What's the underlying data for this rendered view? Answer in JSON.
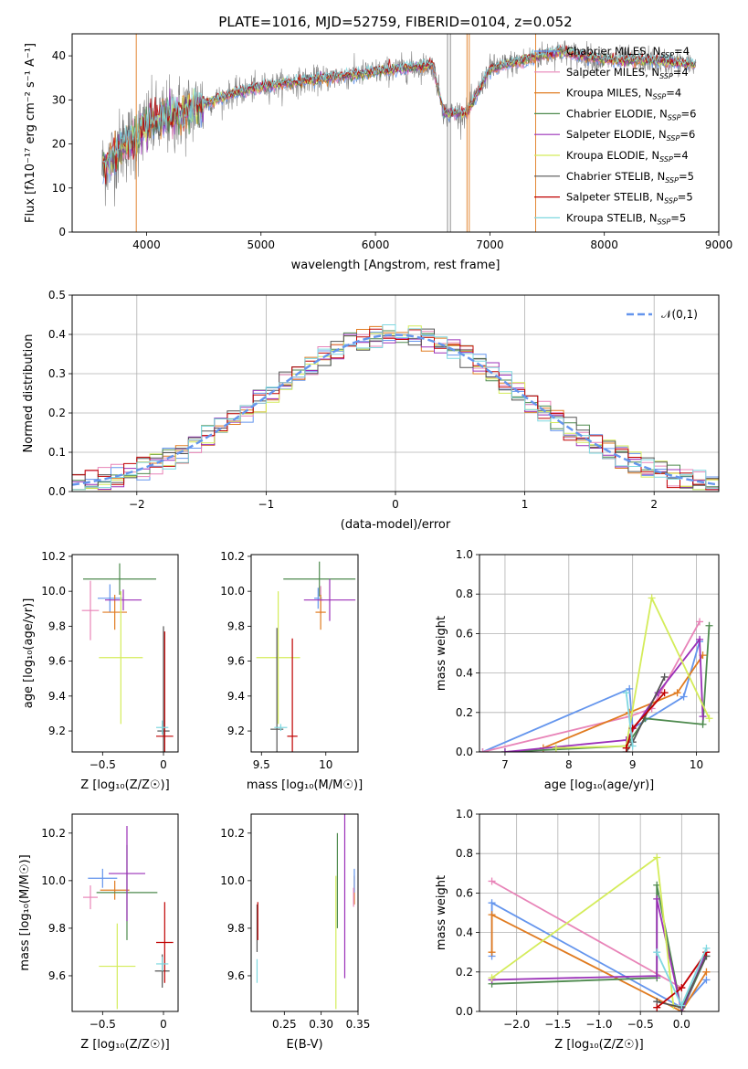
{
  "figure_title": "PLATE=1016, MJD=52759, FIBERID=0104, z=0.052",
  "series_colors": {
    "Chabrier MILES": "#6495ed",
    "Salpeter MILES": "#e884b8",
    "Kroupa MILES": "#e07b20",
    "Chabrier ELODIE": "#4e8a4e",
    "Salpeter ELODIE": "#9b30b8",
    "Kroupa ELODIE": "#d4ec5a",
    "Chabrier STELIB": "#555555",
    "Salpeter STELIB": "#c00000",
    "Kroupa STELIB": "#7fd8e0"
  },
  "chart_data": [
    {
      "id": "spectrum",
      "type": "line",
      "title": "PLATE=1016, MJD=52759, FIBERID=0104, z=0.052",
      "xlabel": "wavelength [Angstrom, rest frame]",
      "ylabel": "Flux [fλ10⁻¹⁷ erg cm⁻² s⁻¹ A⁻¹]",
      "xlim": [
        3350,
        9000
      ],
      "ylim": [
        0,
        45
      ],
      "xticks": [
        4000,
        5000,
        6000,
        7000,
        8000,
        9000
      ],
      "yticks": [
        0,
        10,
        20,
        30,
        40
      ],
      "legend_placement": "upper-right",
      "grid": false,
      "continuum": {
        "x": [
          3600,
          3700,
          3800,
          3900,
          4000,
          4100,
          4200,
          4300,
          4400,
          4500,
          4700,
          5000,
          5300,
          5600,
          5900,
          6200,
          6500,
          6600,
          6700,
          6800,
          7000,
          7300,
          7600,
          8000,
          8400,
          8800
        ],
        "y": [
          14,
          17,
          20,
          21,
          24,
          25,
          26,
          27,
          28,
          29,
          31,
          33,
          34,
          35,
          36,
          37,
          38,
          27,
          27,
          27,
          37,
          39,
          41,
          39,
          39,
          38
        ]
      },
      "series": [
        {
          "name": "Chabrier MILES",
          "nssp": 4,
          "label": "Chabrier MILES, N",
          "sub": "SSP",
          "suffix": "=4"
        },
        {
          "name": "Salpeter MILES",
          "nssp": 4,
          "label": "Salpeter MILES, N",
          "sub": "SSP",
          "suffix": "=4"
        },
        {
          "name": "Kroupa MILES",
          "nssp": 4,
          "label": "Kroupa MILES, N",
          "sub": "SSP",
          "suffix": "=4"
        },
        {
          "name": "Chabrier ELODIE",
          "nssp": 6,
          "label": "Chabrier ELODIE, N",
          "sub": "SSP",
          "suffix": "=6"
        },
        {
          "name": "Salpeter ELODIE",
          "nssp": 6,
          "label": "Salpeter ELODIE, N",
          "sub": "SSP",
          "suffix": "=6"
        },
        {
          "name": "Kroupa ELODIE",
          "nssp": 4,
          "label": "Kroupa ELODIE, N",
          "sub": "SSP",
          "suffix": "=4"
        },
        {
          "name": "Chabrier STELIB",
          "nssp": 5,
          "label": "Chabrier STELIB, N",
          "sub": "SSP",
          "suffix": "=5"
        },
        {
          "name": "Salpeter STELIB",
          "nssp": 5,
          "label": "Salpeter STELIB, N",
          "sub": "SSP",
          "suffix": "=5"
        },
        {
          "name": "Kroupa STELIB",
          "nssp": 5,
          "label": "Kroupa STELIB, N",
          "sub": "SSP",
          "suffix": "=5"
        }
      ]
    },
    {
      "id": "residuals",
      "type": "line",
      "xlabel": "(data-model)/error",
      "ylabel": "Normed distribution",
      "xlim": [
        -2.5,
        2.5
      ],
      "ylim": [
        0,
        0.5
      ],
      "xticks": [
        -2,
        -1,
        0,
        1,
        2
      ],
      "yticks": [
        0.0,
        0.1,
        0.2,
        0.3,
        0.4,
        0.5
      ],
      "grid": true,
      "legend_placement": "upper-right",
      "reference": {
        "name": "𝒩(0,1)",
        "mean": 0,
        "sigma": 1,
        "color": "#6495ed"
      },
      "bin_width": 0.1,
      "bin_start": -2.5
    },
    {
      "id": "age_vs_Z",
      "type": "scatter",
      "xlabel": "Z [log₁₀(Z/Z☉)]",
      "ylabel": "age  [log₁₀(age/yr)]",
      "xlim": [
        -0.75,
        0.12
      ],
      "ylim": [
        9.08,
        10.21
      ],
      "xticks": [
        -0.5,
        0.0
      ],
      "ytick_labels": [
        "9.2",
        "9.4",
        "9.6",
        "9.8",
        "10.0",
        "10.2"
      ],
      "yticks": [
        9.2,
        9.4,
        9.6,
        9.8,
        10.0,
        10.2
      ],
      "points": [
        {
          "series": "Chabrier MILES",
          "x": -0.44,
          "y": 9.96,
          "xerr": 0.1,
          "yerr": 0.08
        },
        {
          "series": "Salpeter MILES",
          "x": -0.6,
          "y": 9.89,
          "xerr": 0.07,
          "yerr": 0.17
        },
        {
          "series": "Kroupa MILES",
          "x": -0.4,
          "y": 9.88,
          "xerr": 0.1,
          "yerr": 0.1
        },
        {
          "series": "Chabrier ELODIE",
          "x": -0.36,
          "y": 10.07,
          "xerr": 0.3,
          "yerr": 0.09
        },
        {
          "series": "Salpeter ELODIE",
          "x": -0.33,
          "y": 9.95,
          "xerr": 0.15,
          "yerr": 0.06
        },
        {
          "series": "Kroupa ELODIE",
          "x": -0.35,
          "y": 9.62,
          "xerr": 0.18,
          "yerr": 0.38
        },
        {
          "series": "Chabrier STELIB",
          "x": 0.0,
          "y": 9.2,
          "xerr": 0.05,
          "yerr": 0.6
        },
        {
          "series": "Salpeter STELIB",
          "x": 0.01,
          "y": 9.17,
          "xerr": 0.07,
          "yerr": 0.6
        },
        {
          "series": "Kroupa STELIB",
          "x": -0.01,
          "y": 9.22,
          "xerr": 0.05,
          "yerr": 0.04
        }
      ]
    },
    {
      "id": "age_vs_mass",
      "type": "scatter",
      "xlabel": "mass [log₁₀(M/M☉)]",
      "ylabel": "",
      "xlim": [
        9.42,
        10.25
      ],
      "ylim": [
        9.08,
        10.21
      ],
      "xticks": [
        9.5,
        10.0
      ],
      "ytick_labels": [
        "9.2",
        "9.4",
        "9.6",
        "9.8",
        "10.0",
        "10.2"
      ],
      "yticks": [
        9.2,
        9.4,
        9.6,
        9.8,
        10.0,
        10.2
      ],
      "points": [
        {
          "series": "Chabrier MILES",
          "x": 9.94,
          "y": 9.96,
          "xerr": 0.03,
          "yerr": 0.06
        },
        {
          "series": "Salpeter MILES",
          "x": 9.96,
          "y": 9.95,
          "xerr": 0.02,
          "yerr": 0.08
        },
        {
          "series": "Kroupa MILES",
          "x": 9.96,
          "y": 9.88,
          "xerr": 0.04,
          "yerr": 0.1
        },
        {
          "series": "Chabrier ELODIE",
          "x": 9.95,
          "y": 10.07,
          "xerr": 0.28,
          "yerr": 0.1
        },
        {
          "series": "Salpeter ELODIE",
          "x": 10.03,
          "y": 9.95,
          "xerr": 0.2,
          "yerr": 0.12
        },
        {
          "series": "Kroupa ELODIE",
          "x": 9.63,
          "y": 9.62,
          "xerr": 0.17,
          "yerr": 0.38
        },
        {
          "series": "Chabrier STELIB",
          "x": 9.62,
          "y": 9.21,
          "xerr": 0.05,
          "yerr": 0.58
        },
        {
          "series": "Salpeter STELIB",
          "x": 9.74,
          "y": 9.17,
          "xerr": 0.04,
          "yerr": 0.56
        },
        {
          "series": "Kroupa STELIB",
          "x": 9.65,
          "y": 9.22,
          "xerr": 0.05,
          "yerr": 0.02
        }
      ]
    },
    {
      "id": "weight_vs_age",
      "type": "line",
      "xlabel": "age  [log₁₀(age/yr)]",
      "ylabel": "mass weight",
      "xlim": [
        6.6,
        10.35
      ],
      "ylim": [
        0,
        1.0
      ],
      "xticks": [
        7,
        8,
        9,
        10
      ],
      "yticks": [
        0.0,
        0.2,
        0.4,
        0.6,
        0.8,
        1.0
      ],
      "grid": true,
      "series": [
        {
          "name": "Chabrier MILES",
          "x": [
            6.65,
            8.95,
            9.0,
            9.8,
            10.05
          ],
          "y": [
            0.0,
            0.32,
            0.12,
            0.28,
            0.56
          ]
        },
        {
          "name": "Salpeter MILES",
          "x": [
            6.65,
            8.95,
            9.3,
            10.05
          ],
          "y": [
            0.0,
            0.18,
            0.22,
            0.66
          ]
        },
        {
          "name": "Kroupa MILES",
          "x": [
            7.6,
            8.95,
            9.7,
            10.1
          ],
          "y": [
            0.02,
            0.2,
            0.3,
            0.49
          ]
        },
        {
          "name": "Chabrier ELODIE",
          "x": [
            7.0,
            8.9,
            9.2,
            10.1,
            10.2
          ],
          "y": [
            0.0,
            0.03,
            0.17,
            0.14,
            0.64
          ]
        },
        {
          "name": "Salpeter ELODIE",
          "x": [
            7.0,
            8.9,
            9.4,
            10.05,
            10.1
          ],
          "y": [
            0.0,
            0.06,
            0.3,
            0.57,
            0.18
          ]
        },
        {
          "name": "Kroupa ELODIE",
          "x": [
            7.8,
            8.9,
            9.3,
            10.2
          ],
          "y": [
            0.02,
            0.03,
            0.78,
            0.17
          ]
        },
        {
          "name": "Chabrier STELIB",
          "x": [
            8.9,
            9.0,
            9.5
          ],
          "y": [
            0.0,
            0.05,
            0.38
          ]
        },
        {
          "name": "Salpeter STELIB",
          "x": [
            8.9,
            9.0,
            9.5
          ],
          "y": [
            0.02,
            0.12,
            0.3
          ]
        },
        {
          "name": "Kroupa STELIB",
          "x": [
            8.9,
            9.0
          ],
          "y": [
            0.3,
            0.03
          ]
        }
      ]
    },
    {
      "id": "mass_vs_Z",
      "type": "scatter",
      "xlabel": "Z [log₁₀(Z/Z☉)]",
      "ylabel": "mass [log₁₀(M/M☉)]",
      "xlim": [
        -0.75,
        0.12
      ],
      "ylim": [
        9.45,
        10.28
      ],
      "xticks": [
        -0.5,
        0.0
      ],
      "ytick_labels": [
        "9.6",
        "9.8",
        "10.0",
        "10.2"
      ],
      "yticks": [
        9.6,
        9.8,
        10.0,
        10.2
      ],
      "points": [
        {
          "series": "Chabrier MILES",
          "x": -0.5,
          "y": 10.01,
          "xerr": 0.12,
          "yerr": 0.04
        },
        {
          "series": "Salpeter MILES",
          "x": -0.6,
          "y": 9.93,
          "xerr": 0.06,
          "yerr": 0.05
        },
        {
          "series": "Kroupa MILES",
          "x": -0.4,
          "y": 9.96,
          "xerr": 0.12,
          "yerr": 0.04
        },
        {
          "series": "Chabrier ELODIE",
          "x": -0.3,
          "y": 9.95,
          "xerr": 0.25,
          "yerr": 0.2
        },
        {
          "series": "Salpeter ELODIE",
          "x": -0.3,
          "y": 10.03,
          "xerr": 0.15,
          "yerr": 0.2
        },
        {
          "series": "Kroupa ELODIE",
          "x": -0.38,
          "y": 9.64,
          "xerr": 0.15,
          "yerr": 0.18
        },
        {
          "series": "Chabrier STELIB",
          "x": -0.01,
          "y": 9.62,
          "xerr": 0.06,
          "yerr": 0.07
        },
        {
          "series": "Salpeter STELIB",
          "x": 0.01,
          "y": 9.74,
          "xerr": 0.07,
          "yerr": 0.17
        },
        {
          "series": "Kroupa STELIB",
          "x": -0.01,
          "y": 9.65,
          "xerr": 0.05,
          "yerr": 0.03
        }
      ]
    },
    {
      "id": "mass_vs_ebv",
      "type": "scatter",
      "xlabel": "E(B-V)",
      "ylabel": "",
      "xlim": [
        0.205,
        0.35
      ],
      "ylim": [
        9.45,
        10.28
      ],
      "xticks": [
        0.25,
        0.3,
        0.35
      ],
      "xtick_labels": [
        "0.25",
        "0.30",
        "0.35"
      ],
      "ytick_labels": [
        "9.6",
        "9.8",
        "10.0",
        "10.2"
      ],
      "yticks": [
        9.6,
        9.8,
        10.0,
        10.2
      ],
      "points": [
        {
          "series": "Chabrier STELIB",
          "x": 0.213,
          "y": 9.8,
          "yerr": 0.1
        },
        {
          "series": "Salpeter STELIB",
          "x": 0.214,
          "y": 9.83,
          "yerr": 0.08
        },
        {
          "series": "Kroupa STELIB",
          "x": 0.213,
          "y": 9.62,
          "yerr": 0.05
        },
        {
          "series": "Chabrier ELODIE",
          "x": 0.322,
          "y": 10.0,
          "yerr": 0.2
        },
        {
          "series": "Kroupa ELODIE",
          "x": 0.32,
          "y": 9.74,
          "yerr": 0.28
        },
        {
          "series": "Salpeter ELODIE",
          "x": 0.332,
          "y": 9.95,
          "yerr": 0.36
        },
        {
          "series": "Kroupa MILES",
          "x": 0.345,
          "y": 9.96,
          "yerr": 0.06
        },
        {
          "series": "Chabrier MILES",
          "x": 0.345,
          "y": 10.0,
          "yerr": 0.05
        },
        {
          "series": "Salpeter MILES",
          "x": 0.344,
          "y": 9.93,
          "yerr": 0.04
        }
      ]
    },
    {
      "id": "weight_vs_Z",
      "type": "line",
      "xlabel": "Z [log₁₀(Z/Z☉)]",
      "ylabel": "mass weight",
      "xlim": [
        -2.45,
        0.45
      ],
      "ylim": [
        0,
        1.0
      ],
      "xticks": [
        -2.0,
        -1.5,
        -1.0,
        -0.5,
        0.0
      ],
      "xtick_labels": [
        "−2.0",
        "−1.5",
        "−1.0",
        "−0.5",
        "0.0"
      ],
      "yticks": [
        0.0,
        0.2,
        0.4,
        0.6,
        0.8,
        1.0
      ],
      "grid": true,
      "series": [
        {
          "name": "Chabrier MILES",
          "x": [
            -2.3,
            -2.3,
            0.0,
            0.3
          ],
          "y": [
            0.28,
            0.55,
            0.02,
            0.16
          ]
        },
        {
          "name": "Salpeter MILES",
          "x": [
            -2.3,
            0.0,
            0.3
          ],
          "y": [
            0.66,
            0.12,
            0.3
          ]
        },
        {
          "name": "Kroupa MILES",
          "x": [
            -2.3,
            -2.3,
            0.0,
            0.3
          ],
          "y": [
            0.3,
            0.49,
            0.0,
            0.2
          ]
        },
        {
          "name": "Chabrier ELODIE",
          "x": [
            -2.3,
            -0.3,
            -0.3,
            0.0,
            0.3
          ],
          "y": [
            0.14,
            0.17,
            0.64,
            0.0,
            0.28
          ]
        },
        {
          "name": "Salpeter ELODIE",
          "x": [
            -2.3,
            -0.3,
            -0.3,
            0.0,
            0.3
          ],
          "y": [
            0.16,
            0.18,
            0.57,
            0.0,
            0.3
          ]
        },
        {
          "name": "Kroupa ELODIE",
          "x": [
            -2.3,
            -0.3,
            -0.1,
            0.0
          ],
          "y": [
            0.17,
            0.78,
            0.03,
            0.02
          ]
        },
        {
          "name": "Chabrier STELIB",
          "x": [
            -0.3,
            0.0,
            0.3
          ],
          "y": [
            0.05,
            0.02,
            0.28
          ]
        },
        {
          "name": "Salpeter STELIB",
          "x": [
            -0.3,
            0.0,
            0.3
          ],
          "y": [
            0.02,
            0.12,
            0.3
          ]
        },
        {
          "name": "Kroupa STELIB",
          "x": [
            -0.3,
            0.0,
            0.3
          ],
          "y": [
            0.3,
            0.03,
            0.32
          ]
        }
      ]
    }
  ]
}
